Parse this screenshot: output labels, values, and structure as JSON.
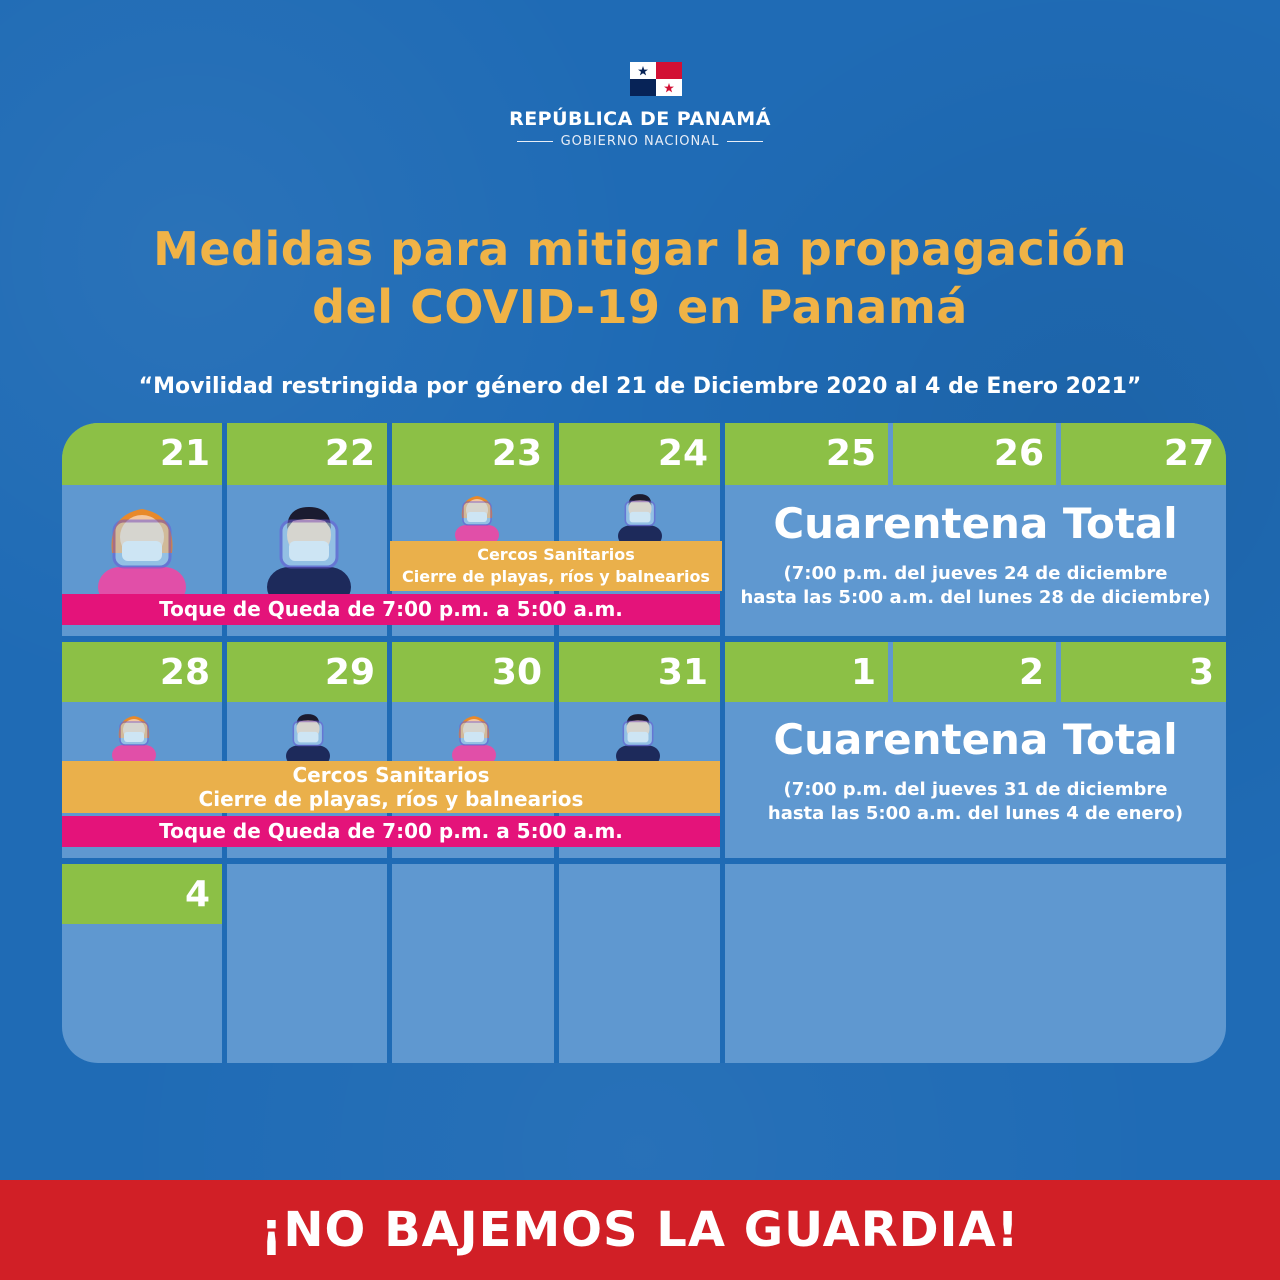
{
  "header": {
    "gov_title": "REPÚBLICA DE PANAMÁ",
    "gov_subtitle": "GOBIERNO NACIONAL",
    "title_line1": "Medidas para mitigar la propagación",
    "title_line2": "del COVID-19 en Panamá",
    "subtitle": "“Movilidad restringida por género del 21 de Diciembre 2020 al 4 de Enero 2021”"
  },
  "calendar": {
    "week1_days": [
      "21",
      "22",
      "23",
      "24",
      "25",
      "26",
      "27"
    ],
    "week2_days": [
      "28",
      "29",
      "30",
      "31",
      "1",
      "2",
      "3"
    ],
    "week3_days": [
      "4"
    ],
    "week1": {
      "cercos_line1": "Cercos Sanitarios",
      "cercos_line2": "Cierre de playas, ríos y balnearios",
      "toque": "Toque de Queda de 7:00 p.m. a 5:00 a.m.",
      "cuarentena_title": "Cuarentena Total",
      "cuarentena_line1": "(7:00 p.m. del jueves 24 de diciembre",
      "cuarentena_line2": "hasta las 5:00 a.m. del lunes 28 de diciembre)"
    },
    "week2": {
      "cercos_line1": "Cercos Sanitarios",
      "cercos_line2": "Cierre de playas, ríos y balnearios",
      "toque": "Toque de Queda de 7:00 p.m. a 5:00 a.m.",
      "cuarentena_title": "Cuarentena Total",
      "cuarentena_line1": "(7:00 p.m. del jueves 31 de diciembre",
      "cuarentena_line2": "hasta las 5:00 a.m. del lunes 4 de enero)"
    }
  },
  "footer": {
    "slogan": "¡NO BAJEMOS LA GUARDIA!"
  },
  "colors": {
    "background": "#1f6bb5",
    "cell": "#5f98d0",
    "header_green": "#8cc046",
    "title_gold": "#f0b347",
    "orange_bar": "#eab04b",
    "pink_bar": "#e4137a",
    "footer_red": "#d11f26"
  }
}
